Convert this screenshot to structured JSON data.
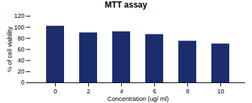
{
  "chart_data": {
    "type": "bar",
    "title": "MTT assay",
    "xlabel": "Concentration (ug/ ml)",
    "ylabel": "% of cell viability",
    "categories": [
      "0",
      "2",
      "4",
      "6",
      "8",
      "10"
    ],
    "values": [
      102,
      90,
      92,
      87,
      75,
      70
    ],
    "color": "#1c2d6e",
    "ylim": [
      0,
      120
    ],
    "yticks": [
      0,
      20,
      40,
      60,
      80,
      100,
      120
    ],
    "grid": false
  }
}
